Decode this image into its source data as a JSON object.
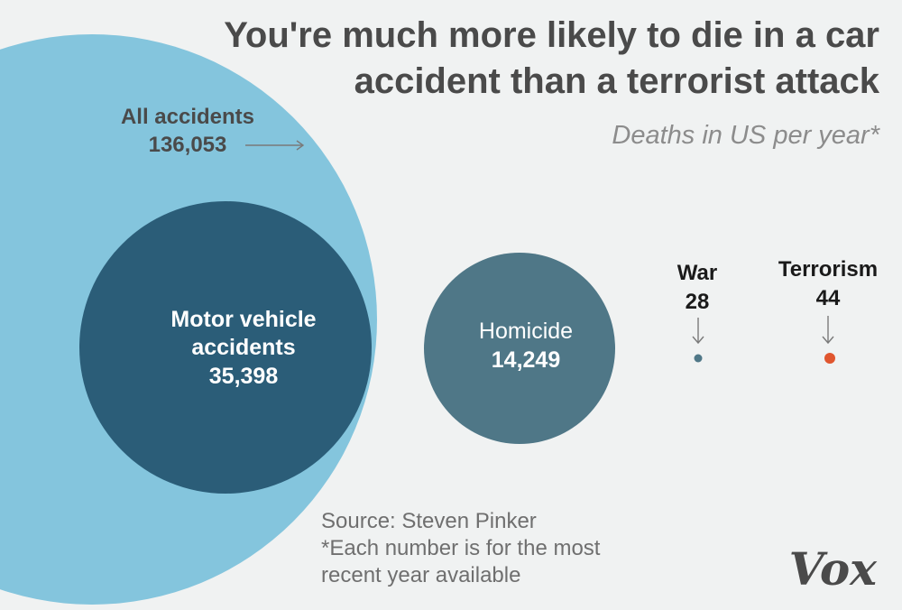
{
  "chart_data": {
    "type": "bubble",
    "title_lines": [
      "You're much more likely to die in a car",
      "accident than a terrorist attack"
    ],
    "subtitle": "Deaths in US per year*",
    "unit": "deaths per year",
    "series": [
      {
        "name": "All accidents",
        "value": 136053,
        "value_label": "136,053",
        "color": "#84c5dd"
      },
      {
        "name": "Motor vehicle accidents",
        "name_lines": [
          "Motor vehicle",
          "accidents"
        ],
        "value": 35398,
        "value_label": "35,398",
        "color": "#2b5d78"
      },
      {
        "name": "Homicide",
        "value": 14249,
        "value_label": "14,249",
        "color": "#4f7787"
      },
      {
        "name": "War",
        "value": 28,
        "value_label": "28",
        "color": "#4f7787"
      },
      {
        "name": "Terrorism",
        "value": 44,
        "value_label": "44",
        "color": "#e0562f"
      }
    ]
  },
  "notes": {
    "source": "Source: Steven Pinker",
    "footnote_lines": [
      "*Each number is for the most",
      "recent year available"
    ]
  },
  "brand": {
    "logo": "Vox"
  }
}
